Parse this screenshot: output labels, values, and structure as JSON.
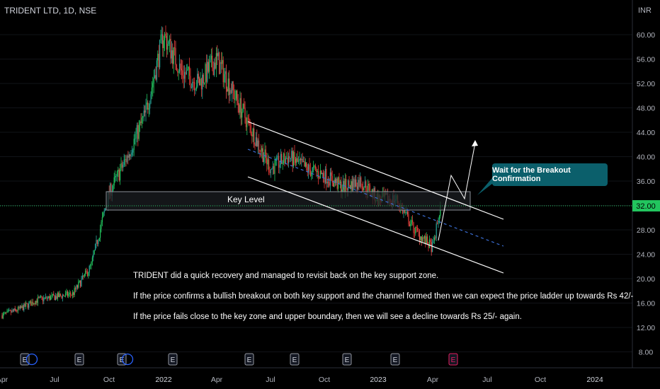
{
  "title": "TRIDENT LTD, 1D, NSE",
  "chart_data": {
    "type": "candlestick",
    "currency_label": "INR",
    "y_ticks": [
      "60.00",
      "56.00",
      "52.00",
      "48.00",
      "44.00",
      "40.00",
      "36.00",
      "32.00",
      "28.00",
      "24.00",
      "20.00",
      "16.00",
      "12.00",
      "8.00"
    ],
    "x_ticks": [
      "Apr",
      "Jul",
      "Oct",
      "2022",
      "Apr",
      "Jul",
      "Oct",
      "2023",
      "Apr",
      "Jul",
      "Oct",
      "2024"
    ],
    "current_price": "32.00",
    "price_path": [
      [
        "2021-04",
        14.0
      ],
      [
        "2021-05",
        15.0
      ],
      [
        "2021-06",
        16.5
      ],
      [
        "2021-07",
        17.0
      ],
      [
        "2021-08",
        17.5
      ],
      [
        "2021-09",
        22.0
      ],
      [
        "2021-10",
        34.0
      ],
      [
        "2021-11",
        40.0
      ],
      [
        "2021-12",
        47.0
      ],
      [
        "2022-01",
        60.0
      ],
      [
        "2022-02",
        54.0
      ],
      [
        "2022-03",
        52.0
      ],
      [
        "2022-04",
        56.0
      ],
      [
        "2022-05",
        50.0
      ],
      [
        "2022-06",
        44.0
      ],
      [
        "2022-07",
        38.0
      ],
      [
        "2022-08",
        40.0
      ],
      [
        "2022-09",
        38.0
      ],
      [
        "2022-10",
        37.0
      ],
      [
        "2022-11",
        35.0
      ],
      [
        "2022-12",
        36.0
      ],
      [
        "2023-01",
        33.0
      ],
      [
        "2023-02",
        33.0
      ],
      [
        "2023-03",
        28.0
      ],
      [
        "2023-04",
        25.0
      ],
      [
        "2023-04-15",
        32.0
      ]
    ],
    "annotations": {
      "key_level_label": "Key Level",
      "callout": "Wait for the Breakout Confirmation",
      "notes": [
        "TRIDENT did a quick recovery and managed to revisit back on the key support zone.",
        "If the price confirms a bullish breakout on both key support and the channel formed then we can expect the price ladder up towards Rs 42/-",
        "If the price fails close to the key zone and upper boundary, then we will see a decline towards Rs 25/- again."
      ]
    },
    "event_markers": [
      "E",
      "E",
      "E",
      "E",
      "E",
      "E",
      "E",
      "E",
      "E",
      "E"
    ],
    "colors": {
      "up": "#26a69a",
      "down": "#ef5350",
      "up_bright": "#22c55e",
      "down_bright": "#e53935",
      "price_line": "#22c55e",
      "channel": "#ffffff",
      "midline": "#3b6fd6",
      "background": "#000000",
      "callout": "#0b5f6b"
    }
  }
}
